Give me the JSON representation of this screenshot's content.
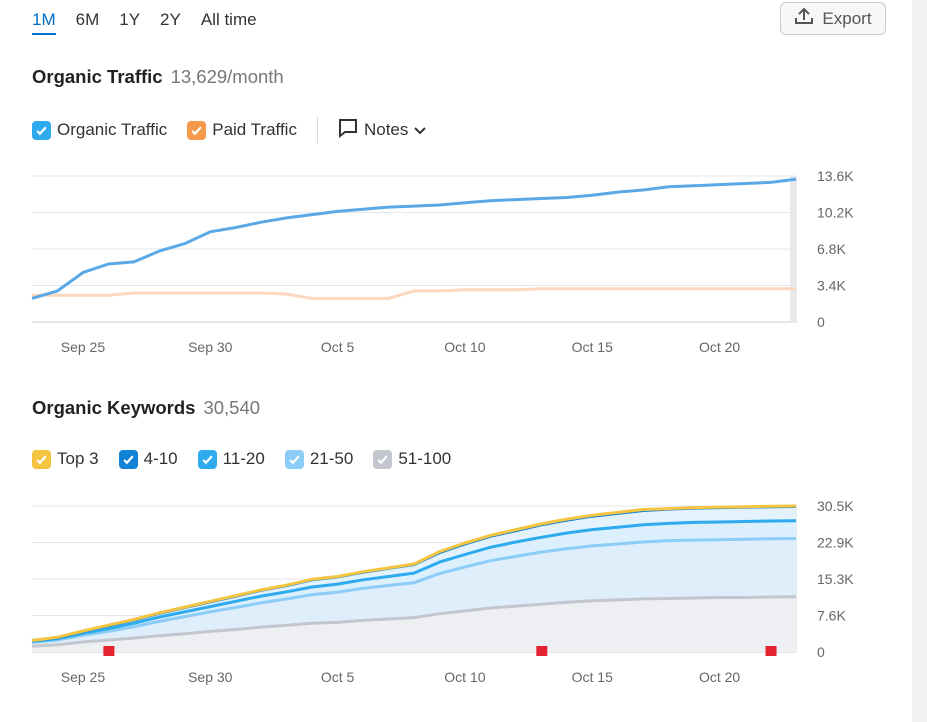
{
  "range_tabs": [
    {
      "label": "1M",
      "active": true
    },
    {
      "label": "6M",
      "active": false
    },
    {
      "label": "1Y",
      "active": false
    },
    {
      "label": "2Y",
      "active": false
    },
    {
      "label": "All time",
      "active": false
    }
  ],
  "export_label": "Export",
  "traffic": {
    "title": "Organic Traffic",
    "value": "13,629/month",
    "legend": [
      {
        "label": "Organic Traffic",
        "color": "#2eaaef",
        "checked": true
      },
      {
        "label": "Paid Traffic",
        "color": "#f59a4b",
        "checked": true
      }
    ],
    "notes_label": "Notes"
  },
  "keywords": {
    "title": "Organic Keywords",
    "value": "30,540",
    "legend": [
      {
        "label": "Top 3",
        "color": "#f5c542",
        "checked": true
      },
      {
        "label": "4-10",
        "color": "#1182d6",
        "checked": true
      },
      {
        "label": "11-20",
        "color": "#2eaaef",
        "checked": true
      },
      {
        "label": "21-50",
        "color": "#8ccdf7",
        "checked": true
      },
      {
        "label": "51-100",
        "color": "#c4c6cf",
        "checked": true
      }
    ]
  },
  "chart_data": [
    {
      "type": "line",
      "title": "Organic Traffic",
      "x_tick_labels": [
        "Sep 25",
        "Sep 30",
        "Oct 5",
        "Oct 10",
        "Oct 15",
        "Oct 20"
      ],
      "y_tick_labels": [
        "13.6K",
        "10.2K",
        "6.8K",
        "3.4K",
        "0"
      ],
      "ylim": [
        0,
        13600
      ],
      "grid": true,
      "series": [
        {
          "name": "Organic Traffic",
          "color": "#5aa9e6",
          "values": [
            2200,
            2900,
            4600,
            5400,
            5600,
            6600,
            7300,
            8400,
            8800,
            9300,
            9700,
            10000,
            10300,
            10500,
            10700,
            10800,
            10900,
            11100,
            11300,
            11400,
            11500,
            11600,
            11800,
            12100,
            12300,
            12600,
            12700,
            12800,
            12900,
            13000,
            13300
          ]
        },
        {
          "name": "Paid Traffic",
          "color": "#fcd7bf",
          "values": [
            2500,
            2500,
            2500,
            2500,
            2700,
            2700,
            2700,
            2700,
            2700,
            2700,
            2600,
            2200,
            2200,
            2200,
            2200,
            2900,
            2900,
            3000,
            3000,
            3000,
            3100,
            3100,
            3100,
            3100,
            3100,
            3100,
            3100,
            3100,
            3100,
            3100,
            3100
          ]
        }
      ]
    },
    {
      "type": "area",
      "title": "Organic Keywords",
      "x_tick_labels": [
        "Sep 25",
        "Sep 30",
        "Oct 5",
        "Oct 10",
        "Oct 15",
        "Oct 20"
      ],
      "y_tick_labels": [
        "30.5K",
        "22.9K",
        "15.3K",
        "7.6K",
        "0"
      ],
      "ylim": [
        0,
        30540
      ],
      "grid": true,
      "notes_markers_day_index": [
        3,
        20,
        29
      ],
      "series": [
        {
          "name": "Top 3",
          "color": "#f5c542",
          "values": [
            2400,
            3100,
            4400,
            5600,
            6800,
            8200,
            9400,
            10600,
            11800,
            13000,
            14000,
            15200,
            15800,
            16800,
            17600,
            18400,
            21000,
            22800,
            24400,
            25600,
            26800,
            27800,
            28600,
            29200,
            29800,
            30000,
            30200,
            30300,
            30400,
            30500,
            30540
          ]
        },
        {
          "name": "4-10",
          "color": "#1182d6",
          "values": [
            2400,
            3000,
            4300,
            5500,
            6700,
            8100,
            9300,
            10500,
            11700,
            12900,
            13900,
            15100,
            15700,
            16700,
            17500,
            18300,
            20800,
            22600,
            24200,
            25400,
            26600,
            27600,
            28400,
            29000,
            29600,
            29900,
            30100,
            30200,
            30300,
            30400,
            30440
          ]
        },
        {
          "name": "11-20",
          "color": "#2eaaef",
          "values": [
            2200,
            2800,
            3900,
            4900,
            6000,
            7300,
            8400,
            9500,
            10600,
            11700,
            12600,
            13600,
            14200,
            15100,
            15800,
            16500,
            18800,
            20400,
            21900,
            23000,
            24000,
            24900,
            25600,
            26100,
            26600,
            26900,
            27100,
            27200,
            27300,
            27400,
            27450
          ]
        },
        {
          "name": "21-50",
          "color": "#8ccdf7",
          "values": [
            2000,
            2500,
            3500,
            4300,
            5300,
            6400,
            7400,
            8400,
            9300,
            10300,
            11100,
            12000,
            12500,
            13300,
            13900,
            14500,
            16400,
            17800,
            19100,
            20000,
            20900,
            21600,
            22200,
            22600,
            23000,
            23300,
            23400,
            23500,
            23600,
            23700,
            23750
          ]
        },
        {
          "name": "51-100",
          "color": "#c4c6cf",
          "values": [
            1200,
            1500,
            2100,
            2500,
            2900,
            3400,
            3800,
            4300,
            4700,
            5200,
            5600,
            6000,
            6200,
            6600,
            6900,
            7200,
            8000,
            8600,
            9200,
            9600,
            10000,
            10400,
            10700,
            10900,
            11100,
            11200,
            11300,
            11400,
            11400,
            11500,
            11550
          ]
        }
      ]
    }
  ]
}
